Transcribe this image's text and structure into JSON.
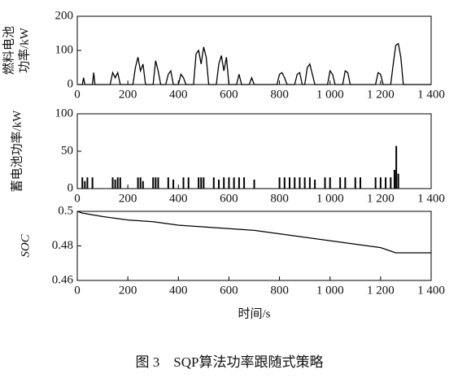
{
  "chart_data": [
    {
      "type": "line",
      "ylabel": [
        "燃料电池",
        "功率/kW"
      ],
      "color": "#000",
      "x": [
        0,
        20,
        25,
        30,
        60,
        65,
        70,
        130,
        140,
        150,
        160,
        170,
        220,
        230,
        240,
        250,
        260,
        270,
        300,
        310,
        320,
        330,
        350,
        360,
        370,
        380,
        400,
        410,
        420,
        430,
        460,
        470,
        480,
        490,
        500,
        510,
        520,
        550,
        560,
        570,
        580,
        590,
        600,
        630,
        640,
        650,
        680,
        690,
        700,
        790,
        800,
        810,
        820,
        830,
        860,
        870,
        880,
        890,
        900,
        910,
        920,
        930,
        940,
        990,
        1000,
        1010,
        1020,
        1050,
        1060,
        1070,
        1080,
        1180,
        1190,
        1200,
        1210,
        1240,
        1250,
        1260,
        1270,
        1280,
        1290,
        1400
      ],
      "values": [
        0,
        0,
        20,
        0,
        0,
        35,
        0,
        0,
        35,
        20,
        35,
        0,
        0,
        50,
        80,
        40,
        60,
        0,
        0,
        70,
        40,
        0,
        0,
        30,
        40,
        0,
        0,
        30,
        20,
        0,
        0,
        90,
        100,
        60,
        110,
        80,
        0,
        0,
        60,
        85,
        40,
        80,
        0,
        0,
        30,
        0,
        0,
        20,
        0,
        0,
        30,
        35,
        20,
        0,
        0,
        30,
        35,
        0,
        0,
        50,
        60,
        30,
        0,
        0,
        40,
        30,
        0,
        0,
        40,
        35,
        0,
        0,
        35,
        30,
        0,
        0,
        60,
        115,
        120,
        80,
        0,
        0
      ],
      "xlim": [
        0,
        1400
      ],
      "ylim": [
        0,
        200
      ],
      "yticks": [
        0,
        100,
        200
      ],
      "xticks": [
        0,
        200,
        400,
        600,
        800,
        {
          "value": 1000,
          "label": "1 000"
        },
        {
          "value": 1200,
          "label": "1 200"
        },
        {
          "value": 1400,
          "label": "1 400"
        }
      ]
    },
    {
      "type": "stem",
      "ylabel": "蓄电池功率/kW",
      "color": "#000",
      "x": [
        20,
        30,
        40,
        60,
        140,
        150,
        160,
        170,
        240,
        250,
        260,
        300,
        310,
        320,
        360,
        380,
        420,
        440,
        480,
        490,
        500,
        540,
        560,
        580,
        600,
        620,
        640,
        660,
        700,
        800,
        820,
        840,
        860,
        880,
        900,
        920,
        940,
        980,
        1000,
        1040,
        1060,
        1100,
        1120,
        1180,
        1200,
        1220,
        1240,
        1255,
        1262,
        1270
      ],
      "values": [
        15,
        10,
        15,
        15,
        15,
        12,
        15,
        15,
        15,
        15,
        10,
        15,
        15,
        15,
        15,
        12,
        15,
        15,
        15,
        15,
        15,
        15,
        12,
        15,
        15,
        15,
        15,
        15,
        12,
        15,
        15,
        15,
        15,
        15,
        15,
        15,
        12,
        15,
        15,
        15,
        15,
        15,
        15,
        15,
        15,
        15,
        15,
        25,
        57,
        20
      ],
      "xlim": [
        0,
        1400
      ],
      "ylim": [
        0,
        100
      ],
      "yticks": [
        0,
        50,
        100
      ],
      "xticks": [
        0,
        200,
        400,
        600,
        800,
        {
          "value": 1000,
          "label": "1 000"
        },
        {
          "value": 1200,
          "label": "1 200"
        },
        {
          "value": 1400,
          "label": "1 400"
        }
      ]
    },
    {
      "type": "line",
      "ylabel": "SOC",
      "xlabel": "时间/s",
      "color": "#000",
      "x": [
        0,
        20,
        60,
        100,
        200,
        300,
        400,
        500,
        600,
        700,
        800,
        900,
        1000,
        1100,
        1200,
        1260,
        1270,
        1400
      ],
      "values": [
        0.5,
        0.499,
        0.498,
        0.497,
        0.495,
        0.494,
        0.492,
        0.491,
        0.49,
        0.489,
        0.487,
        0.485,
        0.483,
        0.481,
        0.479,
        0.476,
        0.476,
        0.476
      ],
      "xlim": [
        0,
        1400
      ],
      "ylim": [
        0.46,
        0.5
      ],
      "yticks": [
        0.46,
        0.48,
        0.5
      ],
      "xticks": [
        0,
        200,
        400,
        600,
        800,
        {
          "value": 1000,
          "label": "1 000"
        },
        {
          "value": 1200,
          "label": "1 200"
        },
        {
          "value": 1400,
          "label": "1 400"
        }
      ]
    }
  ],
  "caption": "图 3　SQP算法功率跟随式策略"
}
